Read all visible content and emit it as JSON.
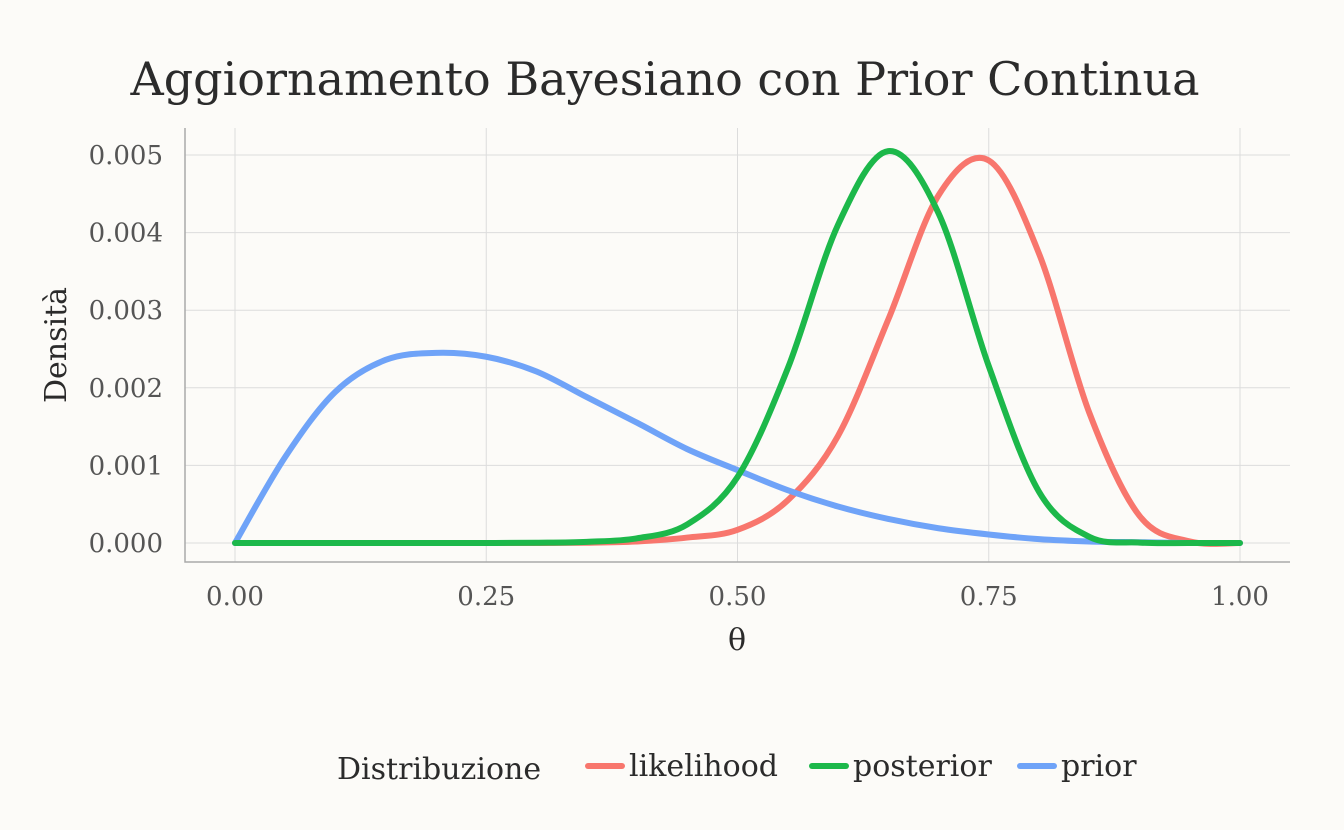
{
  "chart_data": {
    "type": "line",
    "title": "Aggiornamento Bayesiano con Prior Continua",
    "xlabel": "θ",
    "ylabel": "Densità",
    "xlim": [
      -0.05,
      1.05
    ],
    "ylim": [
      -0.00025,
      0.00533
    ],
    "xticks": [
      0,
      0.25,
      0.5,
      0.75,
      1
    ],
    "xtick_labels": [
      "0.00",
      "0.25",
      "0.50",
      "0.75",
      "1.00"
    ],
    "yticks": [
      0,
      0.001,
      0.002,
      0.003,
      0.004,
      0.005
    ],
    "ytick_labels": [
      "0.000",
      "0.001",
      "0.002",
      "0.003",
      "0.004",
      "0.005"
    ],
    "grid": true,
    "legend": {
      "title": "Distribuzione",
      "position": "bottom"
    },
    "series": [
      {
        "name": "likelihood",
        "color": "#f8766d",
        "x": [
          0,
          0.05,
          0.1,
          0.15,
          0.2,
          0.25,
          0.3,
          0.35,
          0.4,
          0.45,
          0.5,
          0.55,
          0.6,
          0.65,
          0.7,
          0.75,
          0.8,
          0.85,
          0.9,
          0.95,
          1
        ],
        "y": [
          0,
          0,
          0,
          0,
          0,
          0,
          0,
          4e-06,
          2e-05,
          7e-05,
          0.00017,
          0.00055,
          0.00138,
          0.00288,
          0.00448,
          0.00493,
          0.00373,
          0.00168,
          0.00035,
          2e-05,
          0
        ]
      },
      {
        "name": "posterior",
        "color": "#1cb84a",
        "x": [
          0,
          0.05,
          0.1,
          0.15,
          0.2,
          0.25,
          0.3,
          0.35,
          0.4,
          0.45,
          0.5,
          0.55,
          0.6,
          0.65,
          0.7,
          0.75,
          0.8,
          0.85,
          0.9,
          0.95,
          1
        ],
        "y": [
          0,
          0,
          0,
          0,
          0,
          0,
          3e-06,
          1.5e-05,
          6e-05,
          0.00024,
          0.00085,
          0.00225,
          0.0041,
          0.00505,
          0.00425,
          0.00228,
          0.00066,
          8e-05,
          5e-06,
          0,
          0
        ]
      },
      {
        "name": "prior",
        "color": "#6fa3f8",
        "x": [
          0,
          0.05,
          0.1,
          0.15,
          0.2,
          0.25,
          0.3,
          0.35,
          0.4,
          0.45,
          0.5,
          0.55,
          0.6,
          0.65,
          0.7,
          0.75,
          0.8,
          0.85,
          0.9,
          0.95,
          1
        ],
        "y": [
          0,
          0.00111,
          0.00195,
          0.00236,
          0.00245,
          0.0024,
          0.00221,
          0.00188,
          0.00155,
          0.00121,
          0.00094,
          0.00068,
          0.00047,
          0.00031,
          0.00019,
          0.00011,
          5e-05,
          2e-05,
          1e-05,
          0,
          0
        ]
      }
    ]
  }
}
